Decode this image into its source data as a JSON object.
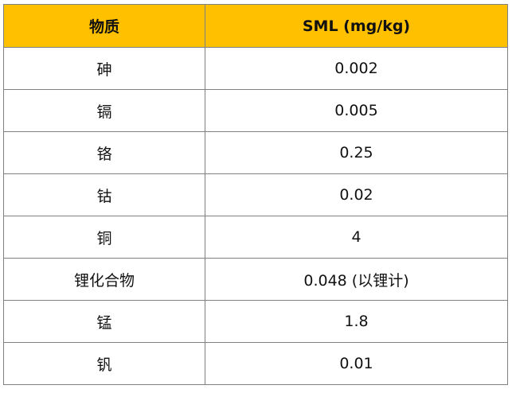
{
  "table": {
    "header": {
      "col_substance": "物质",
      "col_sml": "SML (mg/kg)"
    },
    "rows": [
      {
        "substance": "砷",
        "sml": "0.002"
      },
      {
        "substance": "镉",
        "sml": "0.005"
      },
      {
        "substance": "铬",
        "sml": "0.25"
      },
      {
        "substance": "钴",
        "sml": "0.02"
      },
      {
        "substance": "铜",
        "sml": "4"
      },
      {
        "substance": "锂化合物",
        "sml": "0.048 (以锂计)"
      },
      {
        "substance": "锰",
        "sml": "1.8"
      },
      {
        "substance": "钒",
        "sml": "0.01"
      }
    ],
    "header_color": "#ffc000",
    "border_color": "#808080"
  }
}
